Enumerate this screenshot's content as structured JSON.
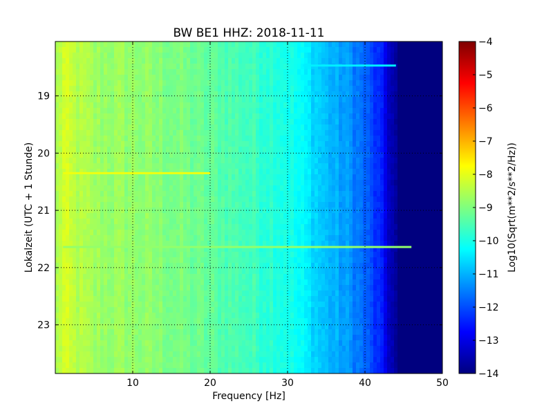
{
  "chart_data": {
    "type": "heatmap",
    "title": "BW BE1 HHZ: 2018-11-11",
    "xlabel": "Frequency [Hz]",
    "ylabel": "Lokalzeit (UTC + 1 Stunde)",
    "xlim": [
      0,
      50
    ],
    "ylim": [
      23.85,
      18.05
    ],
    "x_ticks": [
      10,
      20,
      30,
      40,
      50
    ],
    "y_ticks": [
      19,
      20,
      21,
      22,
      23
    ],
    "grid": true,
    "colormap": "jet",
    "colorbar": {
      "label": "Log10(Sqrt(m**2/s**2/Hz))",
      "range": [
        -14,
        -4
      ],
      "ticks": [
        -4,
        -5,
        -6,
        -7,
        -8,
        -9,
        -10,
        -11,
        -12,
        -13,
        -14
      ]
    },
    "frequency_profile": {
      "frequencies": [
        0,
        1,
        3,
        5,
        10,
        15,
        20,
        25,
        28,
        30,
        33,
        35,
        38,
        40,
        42,
        43,
        44,
        50
      ],
      "values": [
        -8.7,
        -8.2,
        -8.5,
        -8.7,
        -8.8,
        -9.0,
        -9.3,
        -9.6,
        -9.8,
        -10.0,
        -10.5,
        -10.9,
        -11.3,
        -11.8,
        -12.5,
        -13.2,
        -13.8,
        -14.0
      ]
    },
    "horizontal_features": [
      {
        "time": 18.47,
        "freq_range": [
          32,
          44
        ],
        "value": -10.4
      },
      {
        "time": 20.35,
        "freq_range": [
          1,
          20
        ],
        "value": -7.9
      },
      {
        "time": 21.64,
        "freq_range": [
          1,
          46
        ],
        "value": -8.8
      }
    ],
    "palette": {
      "jet": [
        "#00007f",
        "#0000ff",
        "#007fff",
        "#00ffff",
        "#7fff7f",
        "#ffff00",
        "#ff7f00",
        "#ff0000",
        "#7f0000"
      ]
    }
  }
}
